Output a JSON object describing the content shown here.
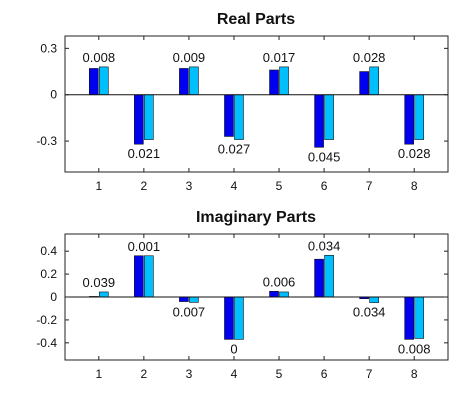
{
  "chart_data": [
    {
      "type": "bar",
      "title": "Real Parts",
      "categories": [
        "1",
        "2",
        "3",
        "4",
        "5",
        "6",
        "7",
        "8"
      ],
      "series": [
        {
          "color": "#0000ee",
          "values": [
            0.17,
            -0.32,
            0.17,
            -0.27,
            0.16,
            -0.34,
            0.15,
            -0.32
          ]
        },
        {
          "color": "#00bfff",
          "values": [
            0.18,
            -0.29,
            0.18,
            -0.29,
            0.18,
            -0.29,
            0.18,
            -0.29
          ]
        }
      ],
      "data_labels": [
        "0.008",
        "0.021",
        "0.009",
        "0.027",
        "0.017",
        "0.045",
        "0.028",
        "0.028"
      ],
      "yticks": [
        0.3,
        0,
        -0.3
      ],
      "ytick_labels": [
        "0.3",
        "0",
        "-0.3"
      ],
      "ylim": [
        -0.5,
        0.38
      ],
      "grid": false,
      "legend": "none"
    },
    {
      "type": "bar",
      "title": "Imaginary Parts",
      "categories": [
        "1",
        "2",
        "3",
        "4",
        "5",
        "6",
        "7",
        "8"
      ],
      "series": [
        {
          "color": "#0000ee",
          "values": [
            0.005,
            0.36,
            -0.04,
            -0.37,
            0.05,
            0.33,
            -0.015,
            -0.37
          ]
        },
        {
          "color": "#00bfff",
          "values": [
            0.044,
            0.36,
            -0.047,
            -0.37,
            0.044,
            0.364,
            -0.049,
            -0.362
          ]
        }
      ],
      "data_labels": [
        "0.039",
        "0.001",
        "0.007",
        "0",
        "0.006",
        "0.034",
        "0.034",
        "0.008"
      ],
      "yticks": [
        0.4,
        0.2,
        0,
        -0.2,
        -0.4
      ],
      "ytick_labels": [
        "0.4",
        "0.2",
        "0",
        "-0.2",
        "-0.4"
      ],
      "ylim": [
        -0.55,
        0.55
      ],
      "grid": false,
      "legend": "none"
    }
  ]
}
